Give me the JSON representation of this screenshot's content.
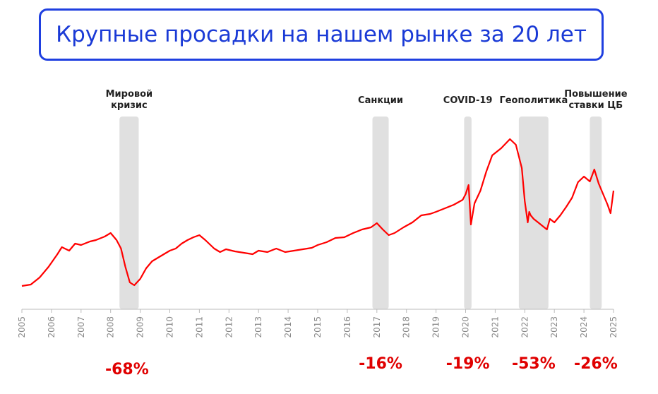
{
  "title": "Крупные просадки на нашем рынке за 20 лет",
  "colors": {
    "line": "#ff0000",
    "shade": "#e0e0e0",
    "title": "#1a3ad6",
    "border": "#1f3fe0",
    "drawdown": "#e00000"
  },
  "chart_data": {
    "type": "line",
    "title": "Крупные просадки на нашем рынке за 20 лет",
    "x_ticks": [
      "2005",
      "2006",
      "2007",
      "2008",
      "2009",
      "2010",
      "2011",
      "2012",
      "2013",
      "2014",
      "2015",
      "2016",
      "2017",
      "2018",
      "2019",
      "2020",
      "2021",
      "2022",
      "2023",
      "2024",
      "2025"
    ],
    "xlim": [
      2005,
      2025
    ],
    "y_axis_labels": false,
    "series": [
      {
        "x": [
          2005.0,
          2005.3,
          2005.6,
          2005.9,
          2006.2,
          2006.35,
          2006.6,
          2006.8,
          2007.0,
          2007.3,
          2007.5,
          2007.8,
          2008.0,
          2008.2,
          2008.35,
          2008.5,
          2008.65,
          2008.8,
          2009.0,
          2009.2,
          2009.4,
          2009.6,
          2009.8,
          2010.0,
          2010.2,
          2010.4,
          2010.6,
          2010.8,
          2011.0,
          2011.2,
          2011.5,
          2011.7,
          2011.9,
          2012.2,
          2012.5,
          2012.8,
          2013.0,
          2013.3,
          2013.6,
          2013.9,
          2014.2,
          2014.5,
          2014.8,
          2015.0,
          2015.3,
          2015.6,
          2015.9,
          2016.2,
          2016.5,
          2016.8,
          2017.0,
          2017.2,
          2017.4,
          2017.6,
          2017.9,
          2018.2,
          2018.5,
          2018.8,
          2019.0,
          2019.3,
          2019.6,
          2019.9,
          2020.0,
          2020.1,
          2020.18,
          2020.3,
          2020.5,
          2020.7,
          2020.9,
          2021.2,
          2021.5,
          2021.7,
          2021.9,
          2022.0,
          2022.1,
          2022.15,
          2022.2,
          2022.3,
          2022.45,
          2022.6,
          2022.75,
          2022.85,
          2023.0,
          2023.2,
          2023.4,
          2023.6,
          2023.8,
          2024.0,
          2024.2,
          2024.35,
          2024.5,
          2024.65,
          2024.8,
          2024.9,
          2025.0
        ],
        "values": [
          405,
          403,
          393,
          378,
          360,
          350,
          355,
          345,
          347,
          342,
          340,
          335,
          330,
          340,
          352,
          378,
          400,
          404,
          395,
          380,
          370,
          365,
          360,
          355,
          352,
          345,
          340,
          336,
          333,
          340,
          352,
          357,
          353,
          356,
          358,
          360,
          355,
          357,
          352,
          357,
          355,
          353,
          351,
          347,
          343,
          337,
          336,
          330,
          325,
          322,
          316,
          325,
          333,
          330,
          322,
          315,
          305,
          303,
          300,
          295,
          290,
          283,
          275,
          262,
          318,
          288,
          270,
          243,
          220,
          210,
          197,
          205,
          238,
          285,
          315,
          300,
          305,
          310,
          315,
          320,
          325,
          310,
          315,
          305,
          293,
          280,
          258,
          250,
          257,
          240,
          260,
          275,
          290,
          302,
          270
        ]
      }
    ],
    "events": [
      {
        "label_lines": [
          "Мировой",
          "кризис"
        ],
        "start": 2008.3,
        "end": 2008.95,
        "drawdown": "-68%"
      },
      {
        "label_lines": [
          "Санкции"
        ],
        "start": 2016.85,
        "end": 2017.4,
        "drawdown": "-16%"
      },
      {
        "label_lines": [
          "COVID-19"
        ],
        "start": 2019.95,
        "end": 2020.2,
        "drawdown": "-19%"
      },
      {
        "label_lines": [
          "Геополитика"
        ],
        "start": 2021.8,
        "end": 2022.8,
        "drawdown": "-53%"
      },
      {
        "label_lines": [
          "Повышение",
          "ставки ЦБ"
        ],
        "start": 2024.2,
        "end": 2024.6,
        "drawdown": "-26%"
      }
    ]
  }
}
